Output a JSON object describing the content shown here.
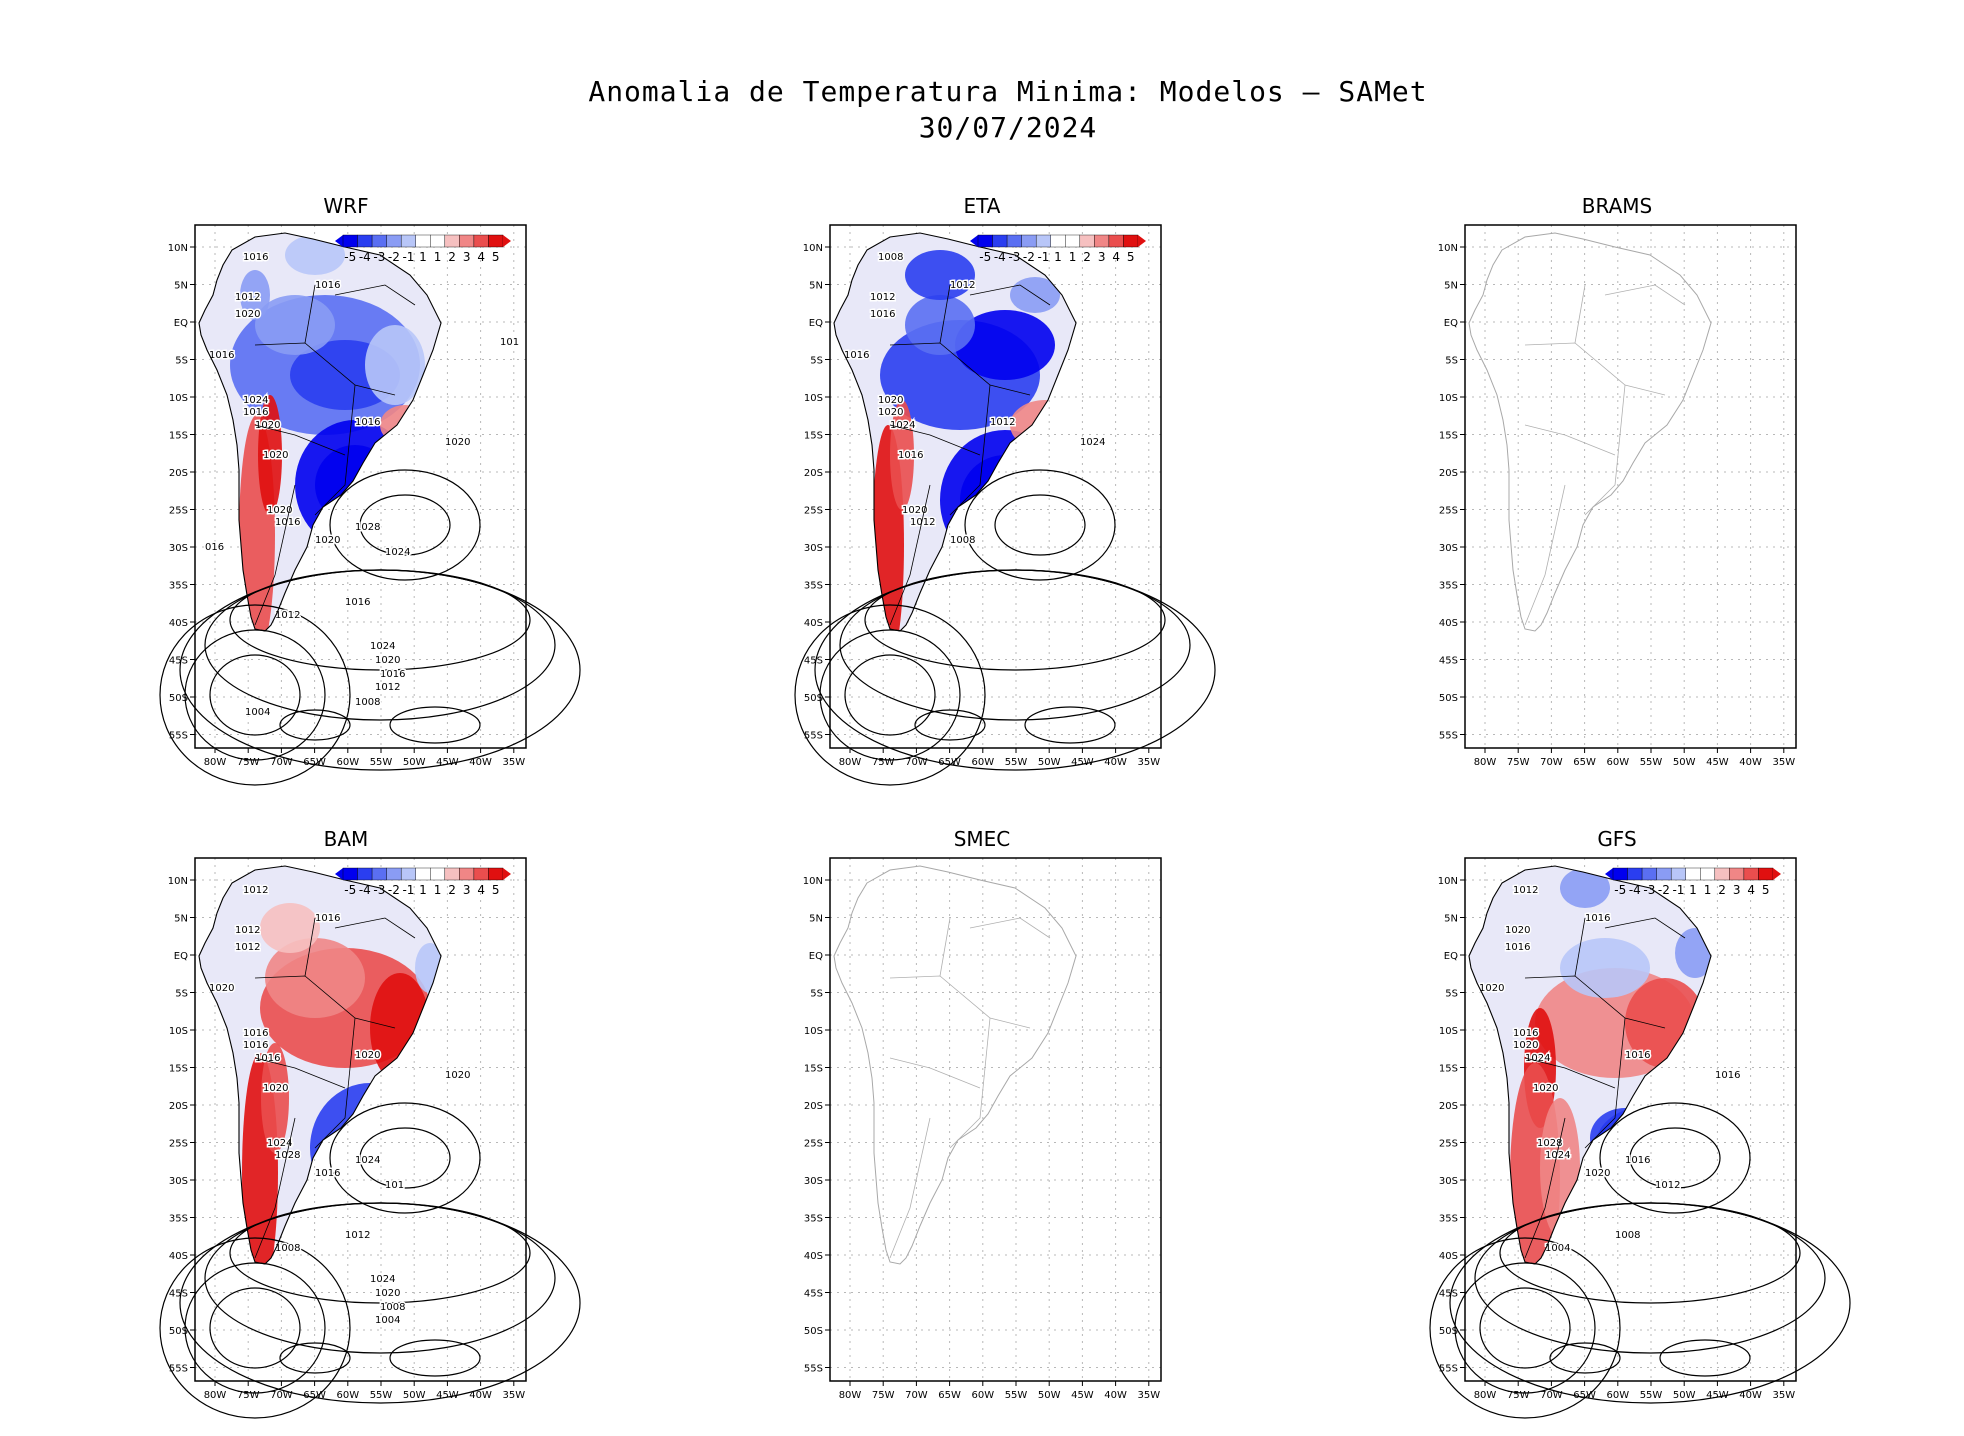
{
  "figure": {
    "title_line1": "Anomalia de Temperatura Minima: Modelos — SAMet",
    "title_line2": "30/07/2024"
  },
  "axes": {
    "lat_labels": [
      "10N",
      "5N",
      "EQ",
      "5S",
      "10S",
      "15S",
      "20S",
      "25S",
      "30S",
      "35S",
      "40S",
      "45S",
      "50S",
      "55S"
    ],
    "lon_labels": [
      "80W",
      "75W",
      "70W",
      "65W",
      "60W",
      "55W",
      "50W",
      "45W",
      "40W",
      "35W"
    ]
  },
  "colorbar": {
    "labels": [
      "-5",
      "-4",
      "-3",
      "-2",
      "-1",
      "1",
      "1",
      "2",
      "3",
      "4",
      "5"
    ],
    "colors": [
      "#0000ee",
      "#2a3ef0",
      "#5a6ff2",
      "#8a9cf4",
      "#b8c6f8",
      "#ffffff",
      "#ffffff",
      "#f6c0c0",
      "#f08686",
      "#ea4e4e",
      "#e01010"
    ]
  },
  "panels": [
    {
      "id": "wrf",
      "title": "WRF",
      "has_data": true,
      "isobars": [
        "1016",
        "1016",
        "1012",
        "1020",
        "1016",
        "1024",
        "1016",
        "1020",
        "1020",
        "1016",
        "1020",
        "1020",
        "1016",
        "1020",
        "1028",
        "1024",
        "1016",
        "1012",
        "1024",
        "1020",
        "1016",
        "1012",
        "1008",
        "1004",
        "016",
        "101"
      ]
    },
    {
      "id": "eta",
      "title": "ETA",
      "has_data": true,
      "isobars": [
        "1008",
        "1012",
        "1012",
        "1016",
        "1016",
        "1020",
        "1020",
        "1024",
        "1016",
        "1012",
        "1024",
        "1020",
        "1012",
        "1008"
      ]
    },
    {
      "id": "brams",
      "title": "BRAMS",
      "has_data": false,
      "isobars": []
    },
    {
      "id": "bam",
      "title": "BAM",
      "has_data": true,
      "isobars": [
        "1012",
        "1016",
        "1012",
        "1012",
        "1020",
        "1016",
        "1016",
        "1016",
        "1020",
        "1020",
        "1020",
        "1024",
        "1028",
        "1016",
        "1024",
        "101",
        "1012",
        "1008",
        "1024",
        "1020",
        "1008",
        "1004"
      ]
    },
    {
      "id": "smec",
      "title": "SMEC",
      "has_data": false,
      "isobars": []
    },
    {
      "id": "gfs",
      "title": "GFS",
      "has_data": true,
      "isobars": [
        "1012",
        "1016",
        "1020",
        "1016",
        "1020",
        "1016",
        "1020",
        "1024",
        "1020",
        "1016",
        "1016",
        "1028",
        "1024",
        "1020",
        "1016",
        "1012",
        "1008",
        "1004"
      ]
    }
  ]
}
